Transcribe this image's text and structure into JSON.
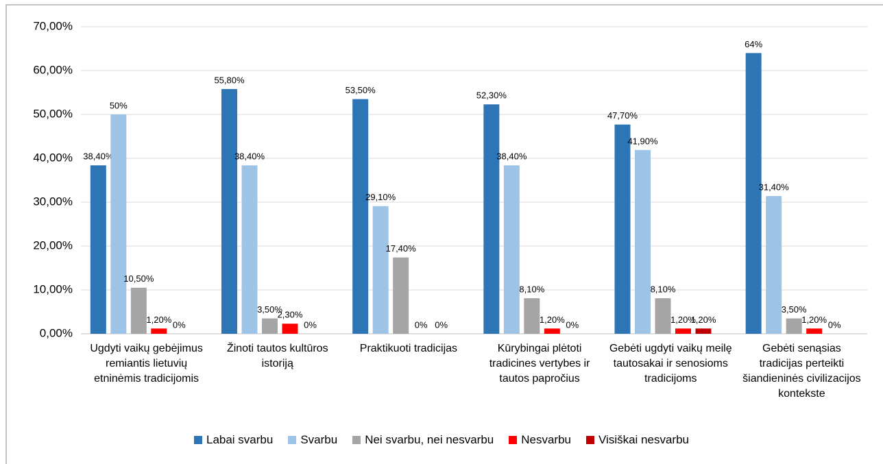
{
  "chart_data": {
    "type": "bar",
    "categories": [
      "Ugdyti vaikų gebėjimus remiantis lietuvių etninėmis tradicijomis",
      "Žinoti tautos kultūros istoriją",
      "Praktikuoti tradicijas",
      "Kūrybingai plėtoti tradicines vertybes ir tautos papročius",
      "Gebėti ugdyti vaikų meilę tautosakai ir senosioms tradicijoms",
      "Gebėti senąsias tradicijas perteikti šiandieninės civilizacijos kontekste"
    ],
    "series": [
      {
        "name": "Labai svarbu",
        "color": "#2e75b6",
        "values": [
          38.4,
          55.8,
          53.5,
          52.3,
          47.7,
          64
        ],
        "value_labels": [
          "38,40%",
          "55,80%",
          "53,50%",
          "52,30%",
          "47,70%",
          "64%"
        ]
      },
      {
        "name": "Svarbu",
        "color": "#9dc3e6",
        "values": [
          50,
          38.4,
          29.1,
          38.4,
          41.9,
          31.4
        ],
        "value_labels": [
          "50%",
          "38,40%",
          "29,10%",
          "38,40%",
          "41,90%",
          "31,40%"
        ]
      },
      {
        "name": "Nei svarbu, nei nesvarbu",
        "color": "#a5a5a5",
        "values": [
          10.5,
          3.5,
          17.4,
          8.1,
          8.1,
          3.5
        ],
        "value_labels": [
          "10,50%",
          "3,50%",
          "17,40%",
          "8,10%",
          "8,10%",
          "3,50%"
        ]
      },
      {
        "name": "Nesvarbu",
        "color": "#ff0000",
        "values": [
          1.2,
          2.3,
          0,
          1.2,
          1.2,
          1.2
        ],
        "value_labels": [
          "1,20%",
          "2,30%",
          "0%",
          "1,20%",
          "1,20%",
          "1,20%"
        ]
      },
      {
        "name": "Visiškai nesvarbu",
        "color": "#c00000",
        "values": [
          0,
          0,
          0,
          0,
          1.2,
          0
        ],
        "value_labels": [
          "0%",
          "0%",
          "0%",
          "0%",
          "1,20%",
          "0%"
        ]
      }
    ],
    "ylim": [
      0,
      70
    ],
    "yticks": [
      {
        "value": 0,
        "label": "0,00%"
      },
      {
        "value": 10,
        "label": "10,00%"
      },
      {
        "value": 20,
        "label": "20,00%"
      },
      {
        "value": 30,
        "label": "30,00%"
      },
      {
        "value": 40,
        "label": "40,00%"
      },
      {
        "value": 50,
        "label": "50,00%"
      },
      {
        "value": 60,
        "label": "60,00%"
      },
      {
        "value": 70,
        "label": "70,00%"
      }
    ],
    "grid": true
  }
}
